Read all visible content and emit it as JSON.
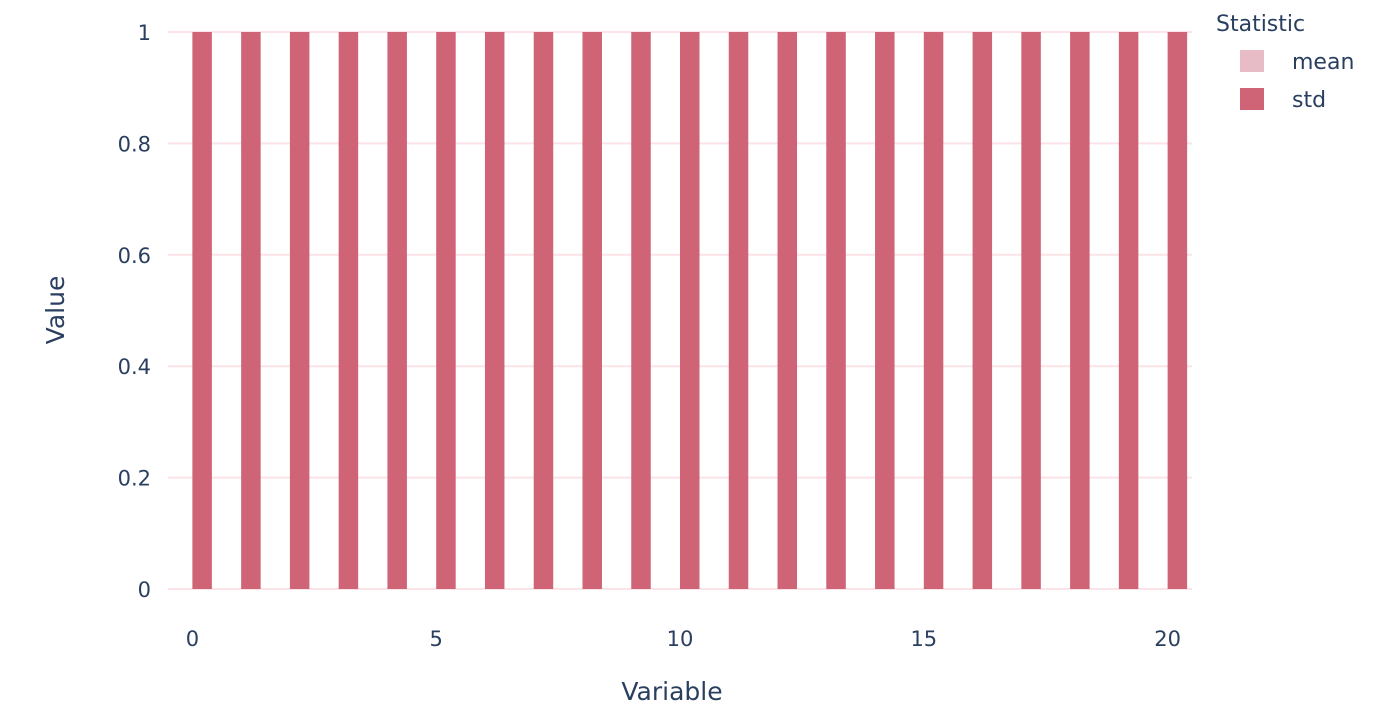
{
  "chart_data": {
    "type": "bar",
    "xlabel": "Variable",
    "ylabel": "Value",
    "xlim": [
      -0.5,
      20.5
    ],
    "ylim": [
      0,
      1
    ],
    "x_ticks": [
      0,
      5,
      10,
      15,
      20
    ],
    "y_ticks": [
      0,
      0.2,
      0.4,
      0.6,
      0.8,
      1
    ],
    "y_tick_labels": [
      "0",
      "0.2",
      "0.4",
      "0.6",
      "0.8",
      "1"
    ],
    "x_tick_labels": [
      "0",
      "5",
      "10",
      "15",
      "20"
    ],
    "grid": true,
    "barmode": "group",
    "x": [
      0,
      1,
      2,
      3,
      4,
      5,
      6,
      7,
      8,
      9,
      10,
      11,
      12,
      13,
      14,
      15,
      16,
      17,
      18,
      19,
      20
    ],
    "series": [
      {
        "name": "mean",
        "color": "#e7bcc6",
        "values": [
          0,
          0,
          0,
          0,
          0,
          0,
          0,
          0,
          0,
          0,
          0,
          0,
          0,
          0,
          0,
          0,
          0,
          0,
          0,
          0,
          0
        ]
      },
      {
        "name": "std",
        "color": "#cf6476",
        "values": [
          1,
          1,
          1,
          1,
          1,
          1,
          1,
          1,
          1,
          1,
          1,
          1,
          1,
          1,
          1,
          1,
          1,
          1,
          1,
          1,
          1
        ]
      }
    ],
    "legend": {
      "title": "Statistic",
      "position": "top-right"
    }
  }
}
